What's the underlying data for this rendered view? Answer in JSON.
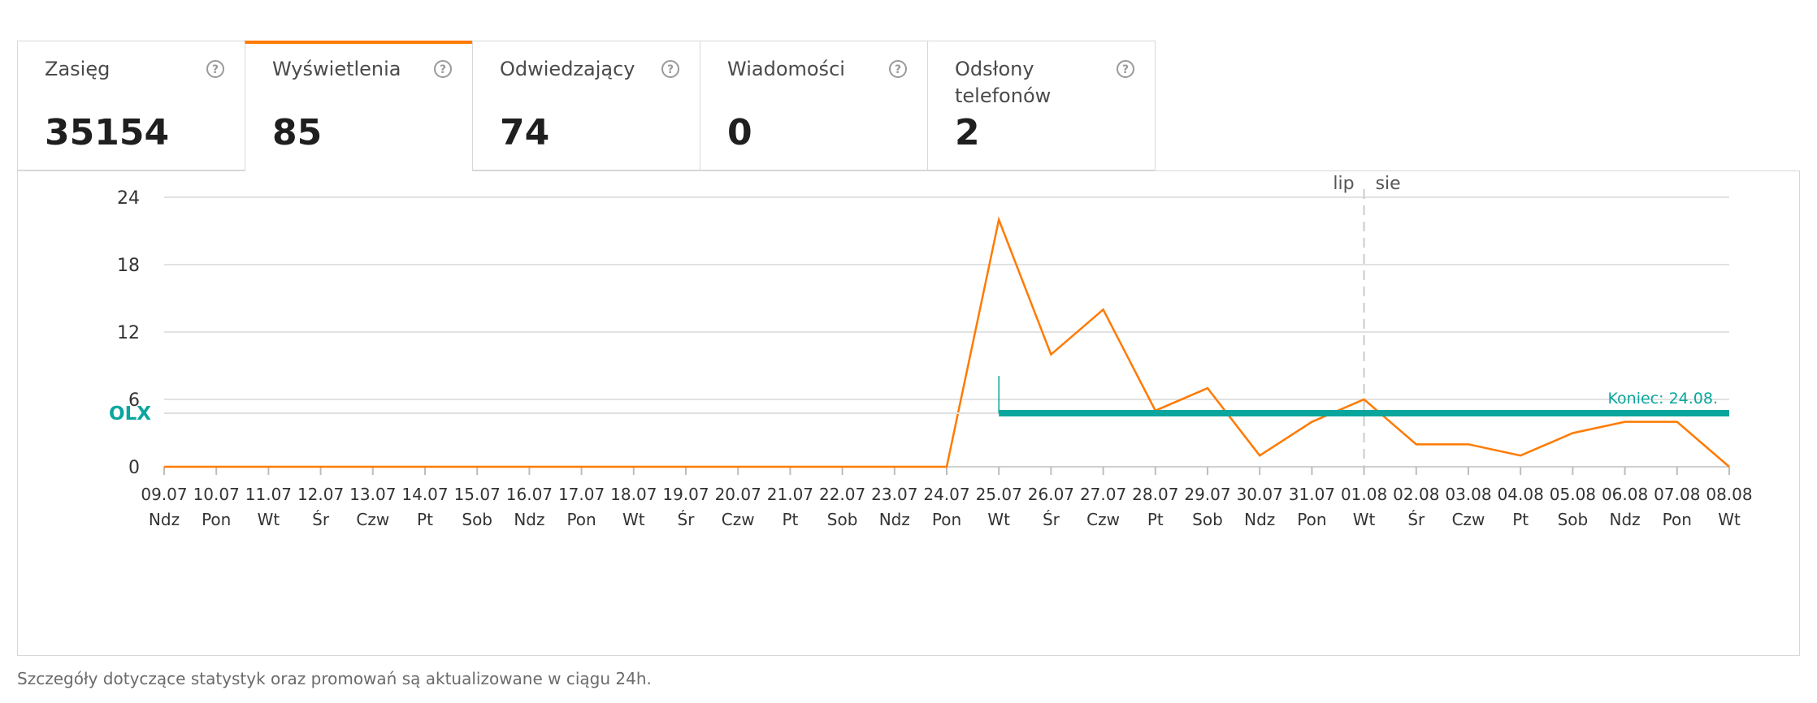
{
  "tabs": [
    {
      "label": "Zasięg",
      "value": "35154",
      "active": false
    },
    {
      "label": "Wyświetlenia",
      "value": "85",
      "active": true
    },
    {
      "label": "Odwiedzający",
      "value": "74",
      "active": false
    },
    {
      "label": "Wiadomości",
      "value": "0",
      "active": false
    },
    {
      "label": "Odsłony telefonów",
      "value": "2",
      "active": false
    }
  ],
  "help_icon": "question-circle-icon",
  "colors": {
    "accent": "#ff7a00",
    "line": "#ff7a00",
    "promo": "#0aa69d",
    "grid": "#e2e2e2",
    "axis_text": "#333333"
  },
  "chart_data": {
    "type": "line",
    "x": [
      "09.07",
      "10.07",
      "11.07",
      "12.07",
      "13.07",
      "14.07",
      "15.07",
      "16.07",
      "17.07",
      "18.07",
      "19.07",
      "20.07",
      "21.07",
      "22.07",
      "23.07",
      "24.07",
      "25.07",
      "26.07",
      "27.07",
      "28.07",
      "29.07",
      "30.07",
      "31.07",
      "01.08",
      "02.08",
      "03.08",
      "04.08",
      "05.08",
      "06.08",
      "07.08",
      "08.08"
    ],
    "weekdays": [
      "Ndz",
      "Pon",
      "Wt",
      "Śr",
      "Czw",
      "Pt",
      "Sob",
      "Ndz",
      "Pon",
      "Wt",
      "Śr",
      "Czw",
      "Pt",
      "Sob",
      "Ndz",
      "Pon",
      "Wt",
      "Śr",
      "Czw",
      "Pt",
      "Sob",
      "Ndz",
      "Pon",
      "Wt",
      "Śr",
      "Czw",
      "Pt",
      "Sob",
      "Ndz",
      "Pon",
      "Wt"
    ],
    "series": [
      {
        "values": [
          0,
          0,
          0,
          0,
          0,
          0,
          0,
          0,
          0,
          0,
          0,
          0,
          0,
          0,
          0,
          0,
          22,
          10,
          14,
          5,
          7,
          1,
          4,
          6,
          2,
          2,
          1,
          3,
          4,
          4,
          0
        ]
      }
    ],
    "ylim": [
      0,
      24
    ],
    "yticks": [
      0,
      6,
      12,
      18,
      24
    ],
    "grid": true,
    "month_divider": {
      "at": "01.08",
      "before": "lip",
      "after": "sie"
    },
    "promotion": {
      "label": "OLX",
      "start": "25.07",
      "end": "08.08",
      "end_label": "Koniec: 24.08."
    }
  },
  "footnote": "Szczegóły dotyczące statystyk oraz promowań są aktualizowane w ciągu 24h."
}
